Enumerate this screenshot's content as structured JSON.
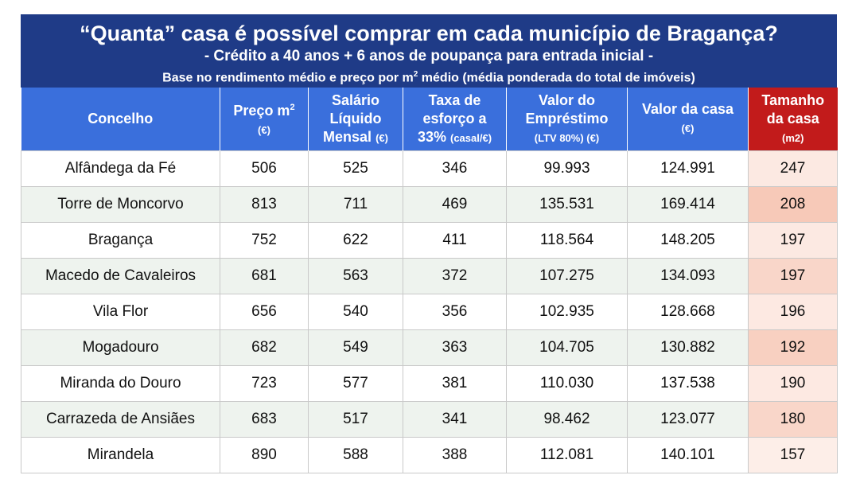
{
  "title": {
    "main": "“Quanta” casa é possível comprar em cada município de Bragança?",
    "sub": "- Crédito a 40 anos + 6 anos de poupança para entrada inicial -",
    "note_before": "Base no rendimento médio e preço por m",
    "note_sup": "2",
    "note_after": " médio (média ponderada do total de imóveis)"
  },
  "headers": {
    "concelho": "Concelho",
    "preco": "Preço m",
    "preco_sup": "2",
    "preco_unit": "(€)",
    "salario_1": "Salário",
    "salario_2": "Líquido",
    "salario_3": "Mensal",
    "salario_unit": "(€)",
    "taxa_1": "Taxa de",
    "taxa_2": "esforço a",
    "taxa_3": "33%",
    "taxa_unit": "(casal/€)",
    "emprestimo_1": "Valor do",
    "emprestimo_2": "Empréstimo",
    "emprestimo_unit": "(LTV 80%) (€)",
    "valor_casa": "Valor da casa",
    "valor_casa_unit": "(€)",
    "tamanho_1": "Tamanho",
    "tamanho_2": "da casa",
    "tamanho_unit": "(m2)"
  },
  "rows": [
    {
      "concelho": "Alfândega da Fé",
      "preco": "506",
      "salario": "525",
      "taxa": "346",
      "emprestimo": "99.993",
      "valor": "124.991",
      "tamanho": "247"
    },
    {
      "concelho": "Torre de Moncorvo",
      "preco": "813",
      "salario": "711",
      "taxa": "469",
      "emprestimo": "135.531",
      "valor": "169.414",
      "tamanho": "208"
    },
    {
      "concelho": "Bragança",
      "preco": "752",
      "salario": "622",
      "taxa": "411",
      "emprestimo": "118.564",
      "valor": "148.205",
      "tamanho": "197"
    },
    {
      "concelho": "Macedo de Cavaleiros",
      "preco": "681",
      "salario": "563",
      "taxa": "372",
      "emprestimo": "107.275",
      "valor": "134.093",
      "tamanho": "197"
    },
    {
      "concelho": "Vila Flor",
      "preco": "656",
      "salario": "540",
      "taxa": "356",
      "emprestimo": "102.935",
      "valor": "128.668",
      "tamanho": "196"
    },
    {
      "concelho": "Mogadouro",
      "preco": "682",
      "salario": "549",
      "taxa": "363",
      "emprestimo": "104.705",
      "valor": "130.882",
      "tamanho": "192"
    },
    {
      "concelho": "Miranda do Douro",
      "preco": "723",
      "salario": "577",
      "taxa": "381",
      "emprestimo": "110.030",
      "valor": "137.538",
      "tamanho": "190"
    },
    {
      "concelho": "Carrazeda de Ansiães",
      "preco": "683",
      "salario": "517",
      "taxa": "341",
      "emprestimo": "98.462",
      "valor": "123.077",
      "tamanho": "180"
    },
    {
      "concelho": "Mirandela",
      "preco": "890",
      "salario": "588",
      "taxa": "388",
      "emprestimo": "112.081",
      "valor": "140.101",
      "tamanho": "157"
    }
  ],
  "colors": {
    "title_band": "#1f3b87",
    "header": "#3a6fdc",
    "header_highlight": "#c21b1b",
    "row_alt": "#eef3ee",
    "size_cell": "#fbe4dc"
  }
}
